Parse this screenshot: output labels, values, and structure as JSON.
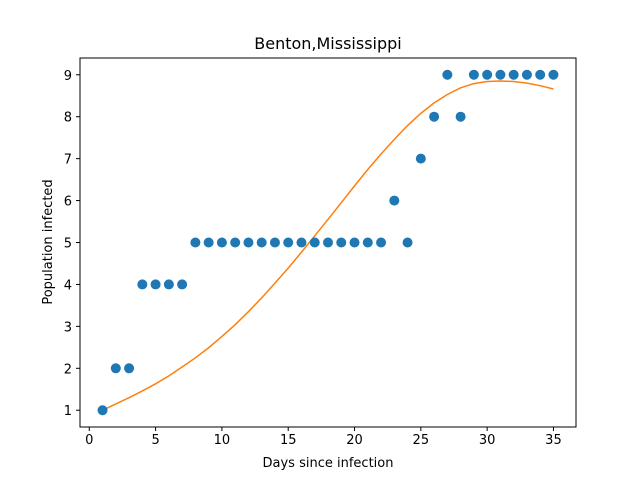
{
  "chart_data": {
    "type": "scatter",
    "title": "Benton,Mississippi",
    "xlabel": "Days since infection",
    "ylabel": "Population infected",
    "xlim": [
      -0.7,
      36.7
    ],
    "ylim": [
      0.6,
      9.4
    ],
    "x_ticks": [
      0,
      5,
      10,
      15,
      20,
      25,
      30,
      35
    ],
    "y_ticks": [
      1,
      2,
      3,
      4,
      5,
      6,
      7,
      8,
      9
    ],
    "grid": false,
    "colors": {
      "points": "#1f77b4",
      "fit": "#ff7f0e"
    },
    "series": [
      {
        "kind": "scatter",
        "x": [
          1,
          2,
          3,
          4,
          5,
          6,
          7,
          8,
          9,
          10,
          11,
          12,
          13,
          14,
          15,
          16,
          17,
          18,
          19,
          20,
          21,
          22,
          23,
          24,
          25,
          26,
          27,
          28,
          29,
          30,
          31,
          32,
          33,
          34,
          35
        ],
        "y": [
          1,
          2,
          2,
          4,
          4,
          4,
          4,
          5,
          5,
          5,
          5,
          5,
          5,
          5,
          5,
          5,
          5,
          5,
          5,
          5,
          5,
          5,
          6,
          5,
          7,
          8,
          9,
          8,
          9,
          9,
          9,
          9,
          9,
          9,
          9
        ]
      },
      {
        "kind": "line",
        "x": [
          1,
          2,
          3,
          4,
          5,
          6,
          7,
          8,
          9,
          10,
          11,
          12,
          13,
          14,
          15,
          16,
          17,
          18,
          19,
          20,
          21,
          22,
          23,
          24,
          25,
          26,
          27,
          28,
          29,
          30,
          31,
          32,
          33,
          34,
          35
        ],
        "y": [
          1.0,
          1.15,
          1.3,
          1.46,
          1.63,
          1.82,
          2.03,
          2.25,
          2.49,
          2.76,
          3.04,
          3.35,
          3.68,
          4.03,
          4.39,
          4.77,
          5.16,
          5.55,
          5.95,
          6.35,
          6.74,
          7.11,
          7.46,
          7.79,
          8.08,
          8.33,
          8.53,
          8.69,
          8.79,
          8.84,
          8.85,
          8.84,
          8.8,
          8.74,
          8.66
        ]
      }
    ]
  }
}
